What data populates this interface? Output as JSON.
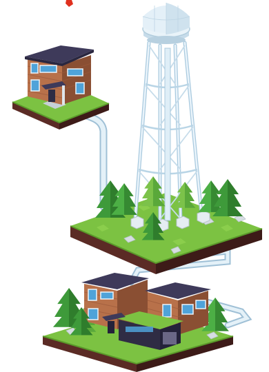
{
  "illustration": {
    "scene": "water-distribution-isometric",
    "icons": [
      "water-tower-icon",
      "house-icon",
      "pipe-icon",
      "pine-tree-icon"
    ],
    "colors": {
      "grass": "#7cc242",
      "grass_dark": "#5a9a2a",
      "soil": "#5b2b25",
      "soil_side": "#3d1b18",
      "pipe": "#d7e9f3",
      "pipe_shadow": "#9fc0d6",
      "tower": "#dfeef7",
      "tower_frame": "#a8c9de",
      "wood": "#b8714a",
      "wood_dark": "#8a4f33",
      "roof": "#3e3a5a",
      "window": "#4fa3d9",
      "tree": "#3e9a3a",
      "tree_light": "#7cc24a",
      "accent": "#e0301e"
    }
  }
}
